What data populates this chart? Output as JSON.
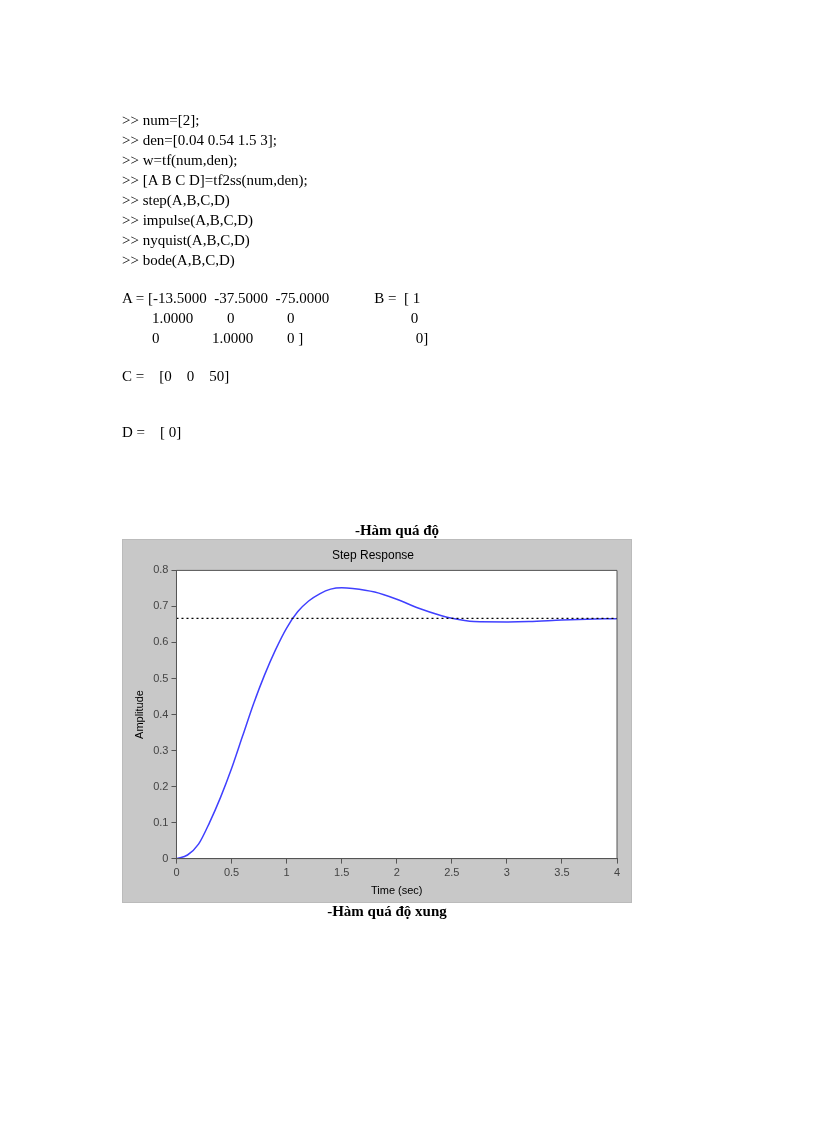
{
  "chart_data": {
    "type": "line",
    "title": "Step Response",
    "subtitle": "-Hàm quá độ",
    "xlabel": "Time (sec)",
    "ylabel": "Amplitude",
    "x": [
      0,
      0.1,
      0.2,
      0.3,
      0.4,
      0.5,
      0.6,
      0.7,
      0.8,
      0.9,
      1.0,
      1.1,
      1.2,
      1.3,
      1.4,
      1.5,
      1.6,
      1.8,
      2.0,
      2.2,
      2.4,
      2.5,
      2.7,
      3.0,
      3.2,
      3.5,
      3.8,
      4.0
    ],
    "series": [
      {
        "color": "#4040ff",
        "values": [
          0,
          0.01,
          0.04,
          0.1,
          0.17,
          0.25,
          0.34,
          0.43,
          0.51,
          0.58,
          0.64,
          0.685,
          0.715,
          0.735,
          0.748,
          0.752,
          0.75,
          0.74,
          0.72,
          0.695,
          0.675,
          0.667,
          0.658,
          0.657,
          0.658,
          0.662,
          0.665,
          0.666
        ]
      }
    ],
    "xlim": [
      0,
      4
    ],
    "xticks": [
      0,
      0.5,
      1,
      1.5,
      2,
      2.5,
      3,
      3.5,
      4
    ],
    "ylim": [
      0,
      0.8
    ],
    "yticks": [
      0,
      0.1,
      0.2,
      0.3,
      0.4,
      0.5,
      0.6,
      0.7,
      0.8
    ],
    "ref_lines": [
      {
        "axis": "y",
        "value": 0.667,
        "color": "#000000",
        "line_style": "dotted"
      }
    ],
    "grid": false,
    "legend": false,
    "marker": "none",
    "line_style": "solid",
    "annotations": [
      ">> num=[2];",
      ">> den=[0.04 0.54 1.5 3];",
      ">> w=tf(num,den);",
      ">> [A B C D]=tf2ss(num,den);",
      ">> step(A,B,C,D)",
      ">> impulse(A,B,C,D)",
      ">> nyquist(A,B,C,D)",
      ">> bode(A,B,C,D)",
      "A = [-13.5000  -37.5000  -75.0000            B =  [ 1",
      "        1.0000         0              0                               0",
      "        0              1.0000         0 ]                              0]",
      "C =    [0    0    50]",
      "D =    [ 0]",
      "-Hàm quá độ xung"
    ]
  }
}
